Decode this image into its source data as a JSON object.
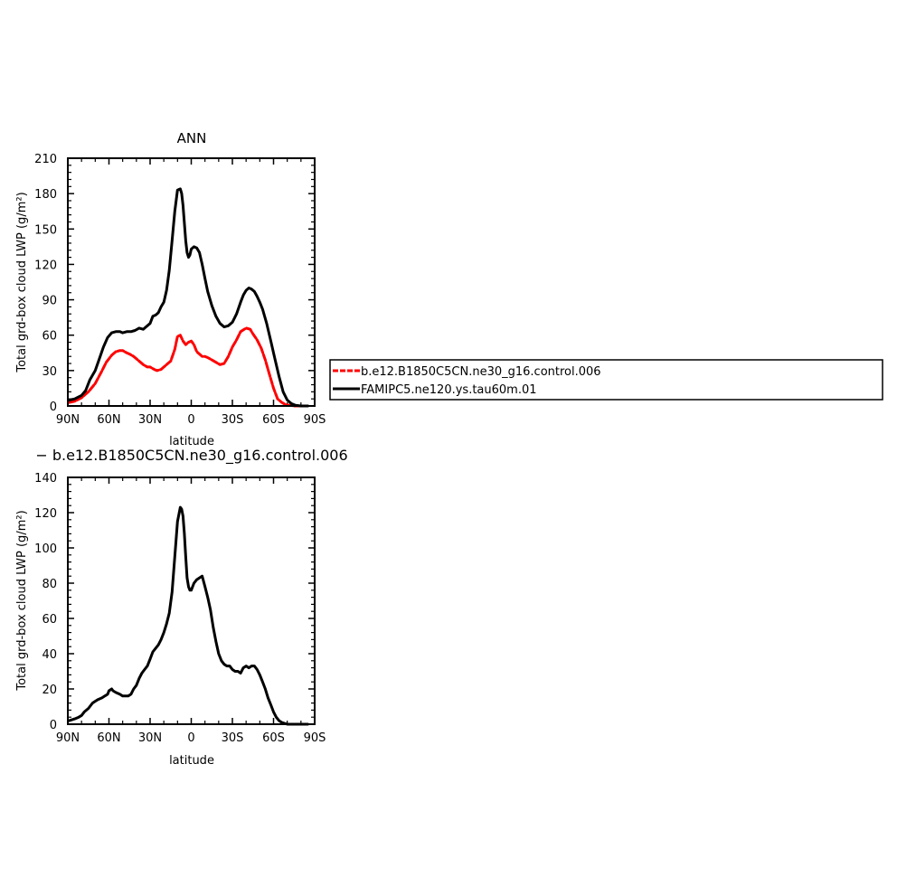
{
  "chart_data": [
    {
      "type": "line",
      "title": "ANN",
      "xlabel": "latitude",
      "ylabel": "Total grd-box cloud LWP (g/m²)",
      "xlim": [
        90,
        -90
      ],
      "ylim": [
        0,
        210
      ],
      "x_ticks": [
        90,
        60,
        30,
        0,
        -30,
        -60,
        -90
      ],
      "x_tick_labels": [
        "90N",
        "60N",
        "30N",
        "0",
        "30S",
        "60S",
        "90S"
      ],
      "y_ticks": [
        0,
        30,
        60,
        90,
        120,
        150,
        180,
        210
      ],
      "y_tick_labels": [
        "0",
        "30",
        "60",
        "90",
        "120",
        "150",
        "180",
        "210"
      ],
      "legend": "right",
      "series": [
        {
          "name": "b.e12.B1850C5CN.ne30_g16.control.006",
          "color": "#ff0000",
          "style": "dashed",
          "x": [
            89,
            85,
            80,
            75,
            70,
            65,
            62,
            58,
            55,
            52,
            50,
            47,
            45,
            42,
            40,
            37,
            35,
            32,
            30,
            27,
            25,
            22,
            20,
            17,
            15,
            12,
            10,
            8,
            6,
            4,
            2,
            0,
            -2,
            -4,
            -6,
            -8,
            -10,
            -12,
            -15,
            -18,
            -21,
            -24,
            -27,
            -30,
            -33,
            -36,
            -40,
            -43,
            -45,
            -48,
            -51,
            -54,
            -57,
            -60,
            -63,
            -66,
            -69,
            -72,
            -75,
            -78,
            -81,
            -85
          ],
          "y": [
            3,
            4,
            7,
            12,
            19,
            30,
            37,
            43,
            46,
            47,
            47,
            45,
            44,
            42,
            40,
            37,
            35,
            33,
            33,
            31,
            30,
            31,
            33,
            36,
            38,
            48,
            59,
            60,
            55,
            52,
            54,
            55,
            52,
            46,
            44,
            42,
            42,
            41,
            39,
            37,
            35,
            36,
            42,
            50,
            56,
            63,
            66,
            65,
            61,
            56,
            49,
            39,
            27,
            15,
            6,
            3,
            1,
            0.5,
            0,
            0,
            0,
            0
          ]
        },
        {
          "name": "FAMIPC5.ne120.ys.tau60m.01",
          "color": "#000000",
          "style": "solid",
          "x": [
            89,
            85,
            80,
            77,
            74,
            70,
            67,
            64,
            61,
            58,
            55,
            52,
            50,
            47,
            44,
            41,
            38,
            35,
            33,
            30,
            28,
            26,
            24,
            22,
            20,
            18,
            16,
            14,
            12,
            10,
            8,
            7,
            6,
            5,
            4,
            3,
            2,
            1,
            0,
            -2,
            -4,
            -6,
            -8,
            -10,
            -12,
            -15,
            -18,
            -21,
            -24,
            -27,
            -30,
            -33,
            -36,
            -38,
            -40,
            -42,
            -44,
            -46,
            -48,
            -50,
            -52,
            -55,
            -58,
            -61,
            -64,
            -67,
            -70,
            -73,
            -76,
            -80,
            -85
          ],
          "y": [
            5,
            6,
            9,
            13,
            22,
            30,
            40,
            50,
            58,
            62,
            63,
            63,
            62,
            63,
            63,
            64,
            66,
            65,
            67,
            70,
            76,
            77,
            79,
            84,
            88,
            98,
            115,
            140,
            165,
            183,
            184,
            180,
            170,
            155,
            140,
            130,
            126,
            128,
            133,
            135,
            134,
            130,
            120,
            108,
            97,
            85,
            76,
            70,
            67,
            68,
            71,
            78,
            88,
            94,
            98,
            100,
            99,
            97,
            93,
            88,
            82,
            70,
            55,
            40,
            25,
            12,
            5,
            2,
            0.5,
            0,
            0
          ]
        }
      ]
    },
    {
      "type": "line",
      "title": "",
      "xlabel": "latitude",
      "ylabel": "Total grd-box cloud LWP (g/m²)",
      "xlim": [
        90,
        -90
      ],
      "ylim": [
        0,
        140
      ],
      "x_ticks": [
        90,
        60,
        30,
        0,
        -30,
        -60,
        -90
      ],
      "x_tick_labels": [
        "90N",
        "60N",
        "30N",
        "0",
        "30S",
        "60S",
        "90S"
      ],
      "y_ticks": [
        0,
        20,
        40,
        60,
        80,
        100,
        120,
        140
      ],
      "y_tick_labels": [
        "0",
        "20",
        "40",
        "60",
        "80",
        "100",
        "120",
        "140"
      ],
      "legend": "top",
      "series": [
        {
          "name": "b.e12.B1850C5CN.ne30_g16.control.006",
          "color": "#000000",
          "style": "solid",
          "x": [
            89,
            85,
            82,
            80,
            78,
            75,
            72,
            70,
            68,
            65,
            63,
            61,
            60,
            58,
            57,
            55,
            52,
            50,
            48,
            46,
            44,
            42,
            40,
            38,
            36,
            34,
            32,
            30,
            28,
            26,
            24,
            22,
            20,
            18,
            16,
            14,
            12,
            10,
            8,
            7,
            6,
            5,
            4,
            3,
            2,
            1,
            0,
            -2,
            -4,
            -6,
            -8,
            -10,
            -12,
            -14,
            -16,
            -18,
            -20,
            -22,
            -24,
            -26,
            -28,
            -30,
            -32,
            -34,
            -36,
            -38,
            -40,
            -42,
            -44,
            -46,
            -48,
            -50,
            -52,
            -54,
            -56,
            -58,
            -60,
            -62,
            -64,
            -66,
            -68,
            -70,
            -73,
            -76,
            -80,
            -85
          ],
          "y": [
            2,
            3,
            4,
            5,
            7,
            9,
            12,
            13,
            14,
            15,
            16,
            17,
            19,
            20,
            19,
            18,
            17,
            16,
            16,
            16,
            17,
            20,
            22,
            26,
            29,
            31,
            33,
            37,
            41,
            43,
            45,
            48,
            52,
            57,
            63,
            75,
            95,
            115,
            123,
            122,
            118,
            108,
            95,
            83,
            78,
            76,
            76,
            80,
            82,
            83,
            84,
            78,
            72,
            65,
            55,
            47,
            40,
            36,
            34,
            33,
            33,
            31,
            30,
            30,
            29,
            32,
            33,
            32,
            33,
            33,
            31,
            28,
            24,
            20,
            15,
            11,
            7,
            4,
            2,
            1,
            0.5,
            0,
            0,
            0,
            0,
            0
          ]
        }
      ]
    }
  ],
  "diff_title": "− b.e12.B1850C5CN.ne30_g16.control.006"
}
